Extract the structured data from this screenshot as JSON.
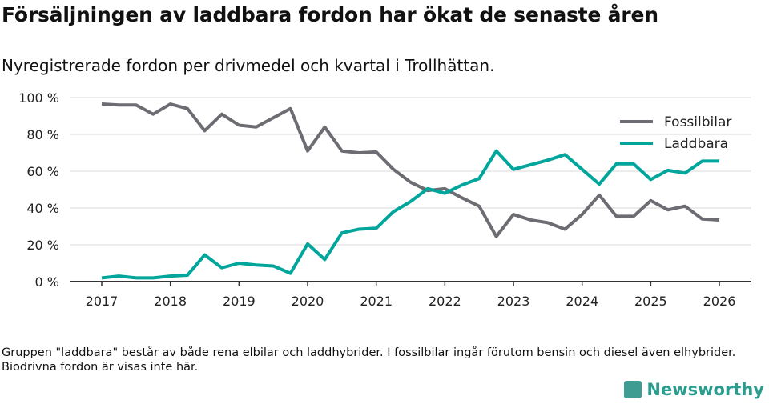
{
  "title": "Försäljningen av laddbara fordon har ökat de senaste åren",
  "subtitle": "Nyregistrerade fordon per drivmedel och kvartal i Trollhättan.",
  "note": "Gruppen \"laddbara\" består av både rena elbilar och laddhybrider. I fossilbilar ingår förutom bensin och diesel även elhybrider. Biodrivna fordon är visas inte här.",
  "brand": "Newsworthy",
  "chart_data": {
    "type": "line",
    "x_unit": "quarter starting 2017 Q1",
    "x_ticks": [
      "2017",
      "2018",
      "2019",
      "2020",
      "2021",
      "2022",
      "2023",
      "2024",
      "2025",
      "2026"
    ],
    "y_ticks": [
      "0 %",
      "20 %",
      "40 %",
      "60 %",
      "80 %",
      "100 %"
    ],
    "ylim": [
      0,
      100
    ],
    "grid": true,
    "legend_position": "top-right",
    "series": [
      {
        "name": "Fossilbilar",
        "color": "#6d6c72",
        "values": [
          96.5,
          96,
          96,
          91,
          96.5,
          94,
          82,
          91,
          85,
          84,
          89,
          94,
          71,
          84,
          71,
          70,
          70.5,
          61,
          54,
          49.5,
          50.5,
          45.5,
          41,
          24.5,
          36.5,
          33.5,
          32,
          28.5,
          36.5,
          47,
          35.5,
          35.5,
          44,
          39,
          41,
          34,
          33.5
        ]
      },
      {
        "name": "Laddbara",
        "color": "#00a59b",
        "values": [
          2,
          3,
          2,
          2,
          3,
          3.5,
          14.5,
          7.5,
          10,
          9,
          8.5,
          4.5,
          20.5,
          12,
          26.5,
          28.5,
          29,
          38,
          43.5,
          50.5,
          48,
          52.5,
          56,
          71,
          61,
          63.5,
          66,
          69,
          61,
          53,
          64,
          64,
          55.5,
          60.5,
          59,
          65.5,
          65.5
        ]
      }
    ]
  }
}
